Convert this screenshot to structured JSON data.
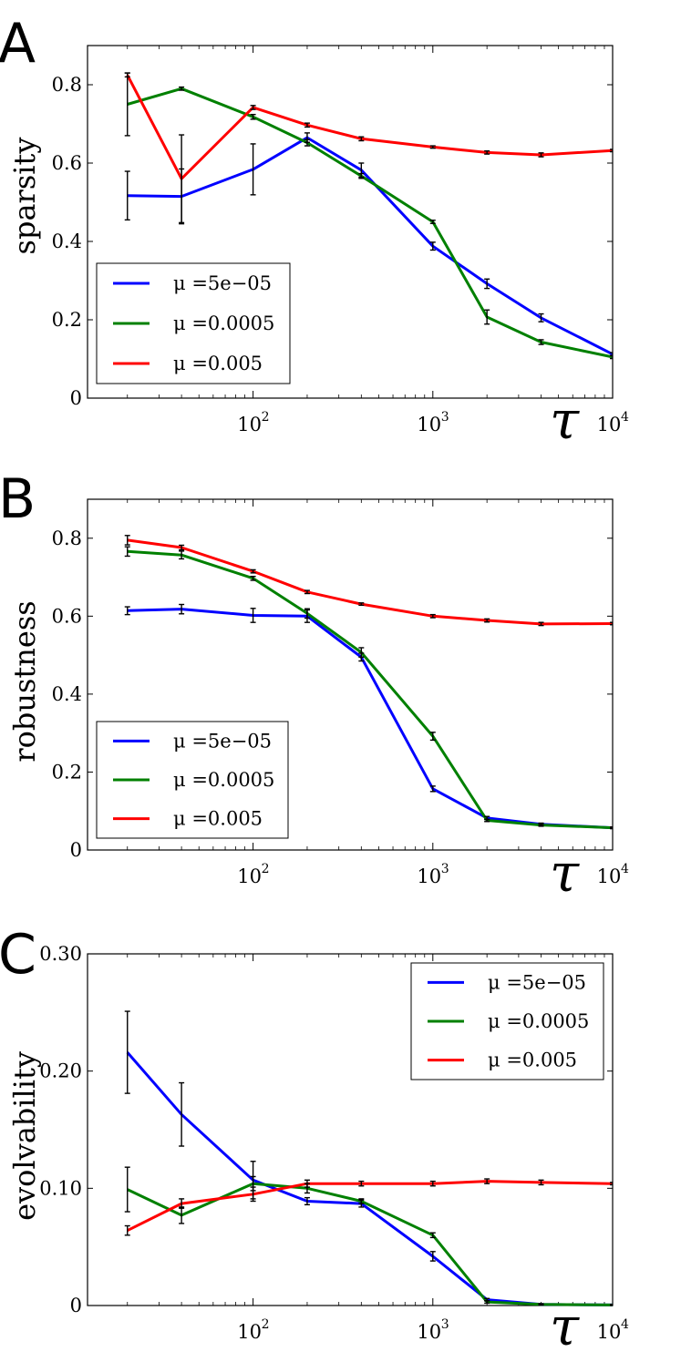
{
  "chart_data": [
    {
      "panel": "A",
      "type": "line",
      "xscale": "log",
      "xlabel": "τ",
      "ylabel": "sparsity",
      "xlim": [
        12,
        10000
      ],
      "ylim": [
        0,
        0.9
      ],
      "yticks": [
        "0",
        "0.2",
        "0.4",
        "0.6",
        "0.8"
      ],
      "ytick_values": [
        0,
        0.2,
        0.4,
        0.6,
        0.8
      ],
      "xticks": [
        {
          "base": "10",
          "exp": "2",
          "value": 100
        },
        {
          "base": "10",
          "exp": "3",
          "value": 1000
        },
        {
          "base": "10",
          "exp": "4",
          "value": 10000
        }
      ],
      "legend_position": "lower-left",
      "x": [
        20,
        40,
        100,
        200,
        400,
        1000,
        2000,
        4000,
        10000
      ],
      "series": [
        {
          "name": "μ =5e−05",
          "color": "#0000ff",
          "values": [
            0.517,
            0.515,
            0.584,
            0.665,
            0.582,
            0.388,
            0.292,
            0.205,
            0.112
          ],
          "errors": [
            0.062,
            0.07,
            0.065,
            0.012,
            0.018,
            0.01,
            0.012,
            0.01,
            0.004
          ]
        },
        {
          "name": "μ =0.0005",
          "color": "#008000",
          "values": [
            0.75,
            0.79,
            0.718,
            0.652,
            0.567,
            0.45,
            0.207,
            0.143,
            0.105
          ],
          "errors": [
            0.08,
            0.004,
            0.006,
            0.008,
            0.006,
            0.004,
            0.018,
            0.006,
            0.004
          ]
        },
        {
          "name": "μ =0.005",
          "color": "#ff0000",
          "values": [
            0.825,
            0.56,
            0.742,
            0.697,
            0.662,
            0.641,
            0.627,
            0.621,
            0.632
          ],
          "errors": [
            0.005,
            0.112,
            0.005,
            0.005,
            0.005,
            0.003,
            0.004,
            0.005,
            0.003
          ]
        }
      ]
    },
    {
      "panel": "B",
      "type": "line",
      "xscale": "log",
      "xlabel": "τ",
      "ylabel": "robustness",
      "xlim": [
        12,
        10000
      ],
      "ylim": [
        0,
        0.9
      ],
      "yticks": [
        "0",
        "0.2",
        "0.4",
        "0.6",
        "0.8"
      ],
      "ytick_values": [
        0,
        0.2,
        0.4,
        0.6,
        0.8
      ],
      "xticks": [
        {
          "base": "10",
          "exp": "2",
          "value": 100
        },
        {
          "base": "10",
          "exp": "3",
          "value": 1000
        },
        {
          "base": "10",
          "exp": "4",
          "value": 10000
        }
      ],
      "legend_position": "lower-left",
      "x": [
        20,
        40,
        100,
        200,
        400,
        1000,
        2000,
        4000,
        10000
      ],
      "series": [
        {
          "name": "μ =5e−05",
          "color": "#0000ff",
          "values": [
            0.614,
            0.618,
            0.602,
            0.6,
            0.495,
            0.157,
            0.082,
            0.066,
            0.057
          ],
          "errors": [
            0.01,
            0.012,
            0.018,
            0.016,
            0.01,
            0.007,
            0.004,
            0.003,
            0.002
          ]
        },
        {
          "name": "μ =0.0005",
          "color": "#008000",
          "values": [
            0.766,
            0.757,
            0.697,
            0.607,
            0.507,
            0.292,
            0.076,
            0.064,
            0.057
          ],
          "errors": [
            0.012,
            0.01,
            0.005,
            0.012,
            0.012,
            0.01,
            0.003,
            0.003,
            0.002
          ]
        },
        {
          "name": "μ =0.005",
          "color": "#ff0000",
          "values": [
            0.795,
            0.776,
            0.715,
            0.662,
            0.631,
            0.6,
            0.589,
            0.58,
            0.581
          ],
          "errors": [
            0.012,
            0.006,
            0.004,
            0.004,
            0.003,
            0.004,
            0.004,
            0.004,
            0.003
          ]
        }
      ]
    },
    {
      "panel": "C",
      "type": "line",
      "xscale": "log",
      "xlabel": "τ",
      "ylabel": "evolvability",
      "xlim": [
        12,
        10000
      ],
      "ylim": [
        0,
        0.3
      ],
      "yticks": [
        "0",
        "0.10",
        "0.20",
        "0.30"
      ],
      "ytick_values": [
        0,
        0.1,
        0.2,
        0.3
      ],
      "xticks": [
        {
          "base": "10",
          "exp": "2",
          "value": 100
        },
        {
          "base": "10",
          "exp": "3",
          "value": 1000
        },
        {
          "base": "10",
          "exp": "4",
          "value": 10000
        }
      ],
      "legend_position": "upper-right",
      "x": [
        20,
        40,
        100,
        200,
        400,
        1000,
        2000,
        4000,
        10000
      ],
      "series": [
        {
          "name": "μ =5e−05",
          "color": "#0000ff",
          "values": [
            0.216,
            0.163,
            0.107,
            0.089,
            0.087,
            0.042,
            0.005,
            0.001,
            0.0005
          ],
          "errors": [
            0.035,
            0.027,
            0.016,
            0.003,
            0.003,
            0.004,
            0.001,
            0.0005,
            0.0003
          ]
        },
        {
          "name": "μ =0.0005",
          "color": "#008000",
          "values": [
            0.099,
            0.077,
            0.104,
            0.1,
            0.089,
            0.06,
            0.003,
            0.001,
            0.0005
          ],
          "errors": [
            0.019,
            0.007,
            0.006,
            0.004,
            0.002,
            0.002,
            0.001,
            0.0005,
            0.0003
          ]
        },
        {
          "name": "μ =0.005",
          "color": "#ff0000",
          "values": [
            0.064,
            0.087,
            0.095,
            0.104,
            0.104,
            0.104,
            0.106,
            0.105,
            0.104
          ],
          "errors": [
            0.004,
            0.004,
            0.006,
            0.003,
            0.002,
            0.002,
            0.002,
            0.002,
            0.001
          ]
        }
      ]
    }
  ]
}
